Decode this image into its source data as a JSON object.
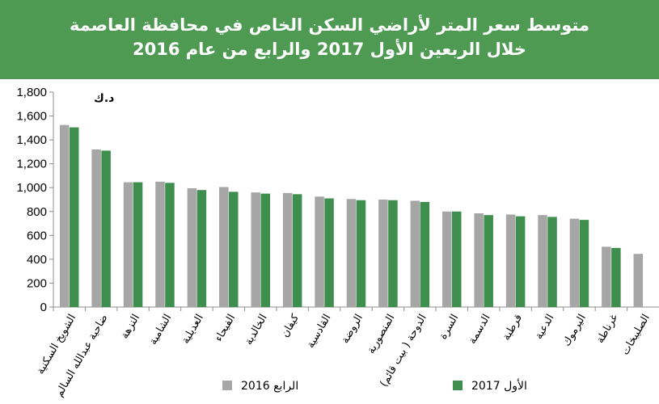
{
  "header": {
    "title_line1": "متوسط سعر المتر  لأراضي السكن الخاص في محافظة العاصمة",
    "title_line2": "خلال الربعين الأول 2017 والرابع من عام   2016"
  },
  "chart_data": {
    "type": "bar",
    "unit_label": "د.ك",
    "categories": [
      "الشويخ السكنية",
      "ضاحية عبدالله السالم",
      "النزهة",
      "الشامية",
      "العديلية",
      "الفيحاء",
      "الخالدية",
      "كيفان",
      "القادسية",
      "الروضة",
      "المنصورية",
      "الدوحة ( بيت قائم)",
      "السرة",
      "الدسمة",
      "قرطبة",
      "الدعية",
      "اليرموك",
      "غرناطة",
      "الصليبخات"
    ],
    "series": [
      {
        "name": "الرابع 2016",
        "color": "#a6a6a6",
        "values": [
          1525,
          1320,
          1045,
          1050,
          995,
          1005,
          960,
          955,
          925,
          905,
          900,
          890,
          800,
          785,
          775,
          770,
          740,
          505,
          445
        ]
      },
      {
        "name": "الأول 2017",
        "color": "#3e8f4e",
        "values": [
          1505,
          1310,
          1045,
          1040,
          980,
          965,
          950,
          945,
          910,
          895,
          895,
          880,
          800,
          770,
          760,
          755,
          730,
          495,
          null
        ]
      }
    ],
    "ylim": [
      0,
      1800
    ],
    "yticks": [
      "0",
      "200",
      "400",
      "600",
      "800",
      "1,000",
      "1,200",
      "1,400",
      "1,600",
      "1,800"
    ],
    "grid": false,
    "legend_position": "bottom"
  }
}
